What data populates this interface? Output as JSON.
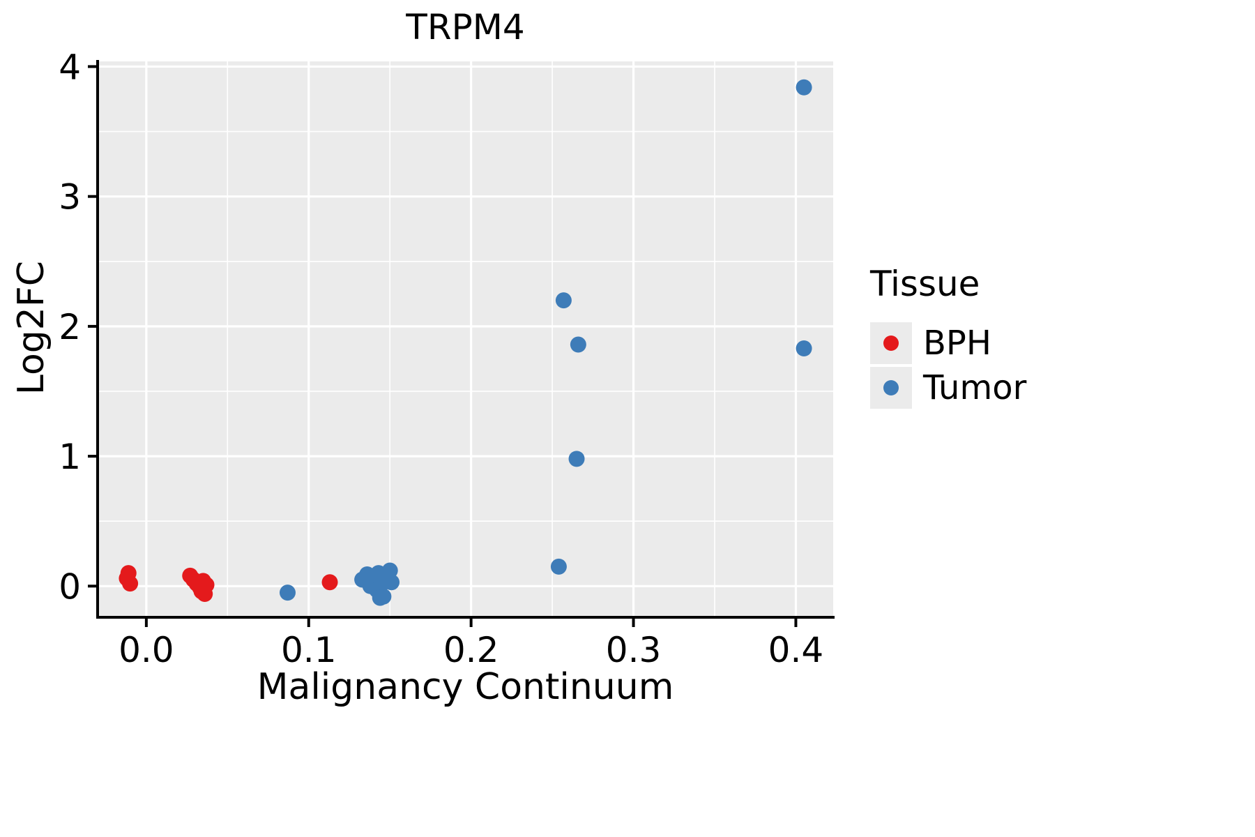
{
  "title": "TRPM4",
  "legend": {
    "title": "Tissue",
    "items": [
      {
        "label": "BPH",
        "color": "#e41a1c"
      },
      {
        "label": "Tumor",
        "color": "#3e7cb8"
      }
    ]
  },
  "colors": {
    "panel_background": "#ebebeb",
    "grid_major": "#ffffff",
    "grid_minor": "#ffffff",
    "axis": "#000000"
  },
  "chart_data": {
    "type": "scatter",
    "title": "TRPM4",
    "xlabel": "Malignancy Continuum",
    "ylabel": "Log2FC",
    "xlim": [
      -0.03,
      0.423
    ],
    "ylim": [
      -0.24,
      4.04
    ],
    "x_ticks": [
      0.0,
      0.1,
      0.2,
      0.3,
      0.4
    ],
    "x_tick_labels": [
      "0.0",
      "0.1",
      "0.2",
      "0.3",
      "0.4"
    ],
    "x_minor_ticks": [
      0.05,
      0.15,
      0.25,
      0.35
    ],
    "y_ticks": [
      0,
      1,
      2,
      3,
      4
    ],
    "y_tick_labels": [
      "0",
      "1",
      "2",
      "3",
      "4"
    ],
    "y_minor_ticks": [
      0.5,
      1.5,
      2.5,
      3.5
    ],
    "grid": true,
    "legend_position": "right",
    "series": [
      {
        "name": "BPH",
        "color": "#e41a1c",
        "points": [
          [
            -0.011,
            0.1
          ],
          [
            -0.012,
            0.06
          ],
          [
            -0.01,
            0.02
          ],
          [
            0.027,
            0.08
          ],
          [
            0.029,
            0.05
          ],
          [
            0.031,
            0.02
          ],
          [
            0.033,
            -0.01
          ],
          [
            0.034,
            -0.04
          ],
          [
            0.036,
            -0.06
          ],
          [
            0.037,
            0.01
          ],
          [
            0.035,
            0.04
          ],
          [
            0.113,
            0.03
          ]
        ]
      },
      {
        "name": "Tumor",
        "color": "#3e7cb8",
        "points": [
          [
            0.087,
            -0.05
          ],
          [
            0.133,
            0.05
          ],
          [
            0.136,
            0.09
          ],
          [
            0.138,
            0.0
          ],
          [
            0.14,
            0.06
          ],
          [
            0.142,
            -0.03
          ],
          [
            0.143,
            0.1
          ],
          [
            0.145,
            0.02
          ],
          [
            0.146,
            -0.08
          ],
          [
            0.148,
            0.07
          ],
          [
            0.15,
            0.12
          ],
          [
            0.151,
            0.03
          ],
          [
            0.144,
            -0.09
          ],
          [
            0.254,
            0.15
          ],
          [
            0.257,
            2.2
          ],
          [
            0.266,
            1.86
          ],
          [
            0.265,
            0.98
          ],
          [
            0.405,
            3.84
          ],
          [
            0.405,
            1.83
          ]
        ]
      }
    ]
  }
}
